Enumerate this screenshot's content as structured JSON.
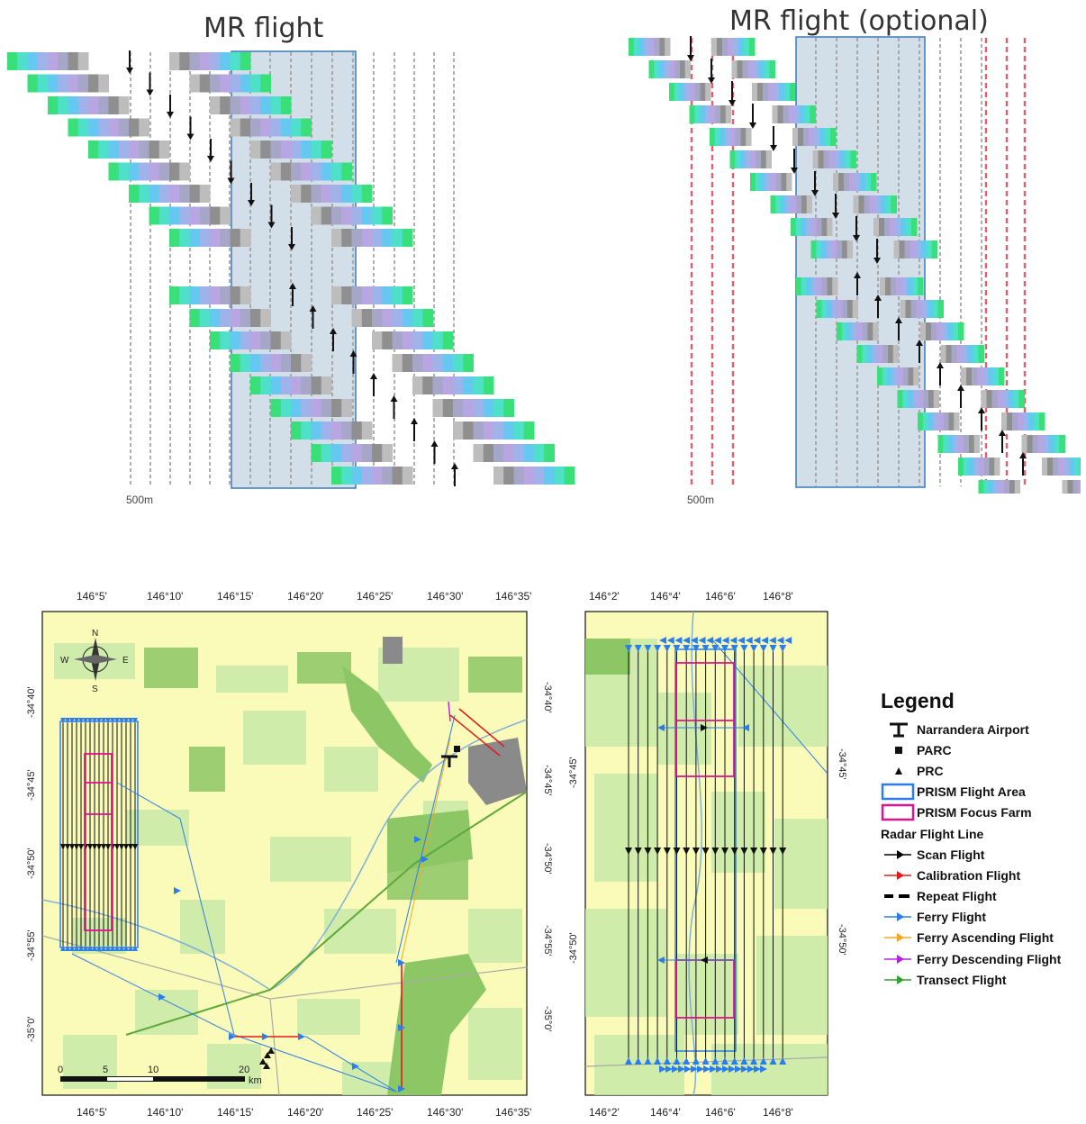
{
  "top_left": {
    "title": "MR flight",
    "scale_label": "500m"
  },
  "top_right": {
    "title": "MR flight (optional)",
    "scale_label": "500m"
  },
  "map_left": {
    "top_ticks": [
      "146°5'",
      "146°10'",
      "146°15'",
      "146°20'",
      "146°25'",
      "146°30'",
      "146°35'"
    ],
    "bottom_ticks": [
      "146°5'",
      "146°10'",
      "146°15'",
      "146°20'",
      "146°25'",
      "146°30'",
      "146°35'"
    ],
    "left_ticks": [
      "-34°40'",
      "-34°45'",
      "-34°50'",
      "-34°55'",
      "-35°0'"
    ],
    "right_ticks": [
      "-34°40'",
      "-34°45'",
      "-34°50'",
      "-34°55'",
      "-35°0'"
    ],
    "scale_labels": [
      "0",
      "5",
      "10",
      "20"
    ],
    "scale_unit": "km",
    "compass": {
      "n": "N",
      "s": "S",
      "e": "E",
      "w": "W"
    }
  },
  "map_right": {
    "top_ticks": [
      "146°2'",
      "146°4'",
      "146°6'",
      "146°8'"
    ],
    "bottom_ticks": [
      "146°2'",
      "146°4'",
      "146°6'",
      "146°8'"
    ],
    "right_ticks": [
      "-34°45'",
      "-34°50'"
    ],
    "left_ticks": [
      "-34°45'",
      "-34°50'"
    ]
  },
  "legend": {
    "title": "Legend",
    "items": [
      {
        "label": "Narrandera Airport",
        "icon": "airport-icon"
      },
      {
        "label": "PARC",
        "icon": "square-icon"
      },
      {
        "label": "PRC",
        "icon": "triangle-icon"
      },
      {
        "label": "PRISM Flight Area",
        "icon": "blue-box-icon"
      },
      {
        "label": "PRISM Focus Farm",
        "icon": "magenta-box-icon"
      }
    ],
    "subheading": "Radar Flight Line",
    "lines": [
      {
        "label": "Scan Flight",
        "color": "#000000"
      },
      {
        "label": "Calibration Flight",
        "color": "#e31a1c"
      },
      {
        "label": "Repeat Flight",
        "color": "#000000"
      },
      {
        "label": "Ferry Flight",
        "color": "#2b7de9"
      },
      {
        "label": "Ferry Ascending Flight",
        "color": "#f5a623"
      },
      {
        "label": "Ferry Descending Flight",
        "color": "#b620e0"
      },
      {
        "label": "Transect Flight",
        "color": "#33a02c"
      }
    ]
  },
  "colors": {
    "land": "#fafbb8",
    "field_green": "#8cc665",
    "field_light": "#c7e9a7",
    "urban": "#8a8a8a",
    "road": "#a9a9a9",
    "area_fill": "#d0dde6",
    "area_border": "#3b78b8"
  }
}
